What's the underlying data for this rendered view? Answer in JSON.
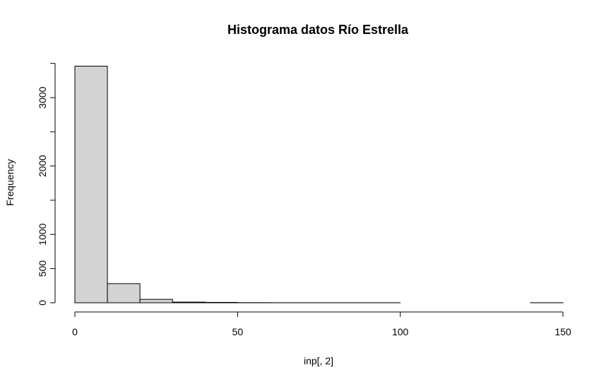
{
  "chart_data": {
    "type": "bar",
    "title": "Histograma datos Río Estrella",
    "xlabel": "inp[, 2]",
    "ylabel": "Frequency",
    "bins": [
      {
        "from": 0,
        "to": 10,
        "count": 3460
      },
      {
        "from": 10,
        "to": 20,
        "count": 280
      },
      {
        "from": 20,
        "to": 30,
        "count": 50
      },
      {
        "from": 30,
        "to": 40,
        "count": 10
      },
      {
        "from": 40,
        "to": 50,
        "count": 6
      },
      {
        "from": 50,
        "to": 60,
        "count": 2
      },
      {
        "from": 60,
        "to": 70,
        "count": 1
      },
      {
        "from": 70,
        "to": 80,
        "count": 1
      },
      {
        "from": 80,
        "to": 90,
        "count": 1
      },
      {
        "from": 90,
        "to": 100,
        "count": 1
      },
      {
        "from": 100,
        "to": 110,
        "count": 0
      },
      {
        "from": 110,
        "to": 120,
        "count": 0
      },
      {
        "from": 120,
        "to": 130,
        "count": 0
      },
      {
        "from": 130,
        "to": 140,
        "count": 0
      },
      {
        "from": 140,
        "to": 150,
        "count": 1
      }
    ],
    "xlim": [
      0,
      150
    ],
    "ylim": [
      0,
      3500
    ],
    "x_ticks": [
      0,
      50,
      100,
      150
    ],
    "y_ticks": [
      0,
      500,
      1000,
      2000,
      3000
    ],
    "grid": false,
    "bar_color": "#d3d3d3",
    "edge_color": "#000000"
  }
}
